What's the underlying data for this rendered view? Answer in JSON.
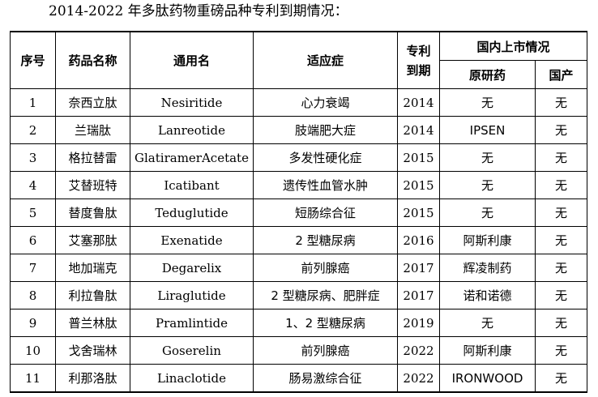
{
  "caption": "2014-2022 年多肽药物重磅品种专利到期情况：",
  "headers": {
    "index": "序号",
    "drug_name": "药品名称",
    "generic_name": "通用名",
    "indication": "适应症",
    "patent_expiry": "专利到期",
    "domestic_market": "国内上市情况",
    "originator": "原研药",
    "domestic": "国产"
  },
  "rows": [
    {
      "index": "1",
      "drug_name": "奈西立肽",
      "generic_name": "Nesiritide",
      "indication": "心力衰竭",
      "year": "2014",
      "originator": "无",
      "domestic": "无"
    },
    {
      "index": "2",
      "drug_name": "兰瑞肽",
      "generic_name": "Lanreotide",
      "indication": "肢端肥大症",
      "year": "2014",
      "originator": "IPSEN",
      "domestic": "无"
    },
    {
      "index": "3",
      "drug_name": "格拉替雷",
      "generic_name": "GlatiramerAcetate",
      "indication": "多发性硬化症",
      "year": "2015",
      "originator": "无",
      "domestic": "无"
    },
    {
      "index": "4",
      "drug_name": "艾替班特",
      "generic_name": "Icatibant",
      "indication": "遗传性血管水肿",
      "year": "2015",
      "originator": "无",
      "domestic": "无"
    },
    {
      "index": "5",
      "drug_name": "替度鲁肽",
      "generic_name": "Teduglutide",
      "indication": "短肠综合征",
      "year": "2015",
      "originator": "无",
      "domestic": "无"
    },
    {
      "index": "6",
      "drug_name": "艾塞那肽",
      "generic_name": "Exenatide",
      "indication": "2 型糖尿病",
      "year": "2016",
      "originator": "阿斯利康",
      "domestic": "无"
    },
    {
      "index": "7",
      "drug_name": "地加瑞克",
      "generic_name": "Degarelix",
      "indication": "前列腺癌",
      "year": "2017",
      "originator": "辉凌制药",
      "domestic": "无"
    },
    {
      "index": "8",
      "drug_name": "利拉鲁肽",
      "generic_name": "Liraglutide",
      "indication": "2 型糖尿病、肥胖症",
      "year": "2017",
      "originator": "诺和诺德",
      "domestic": "无"
    },
    {
      "index": "9",
      "drug_name": "普兰林肽",
      "generic_name": "Pramlintide",
      "indication": "1、2 型糖尿病",
      "year": "2019",
      "originator": "无",
      "domestic": "无"
    },
    {
      "index": "10",
      "drug_name": "戈舍瑞林",
      "generic_name": "Goserelin",
      "indication": "前列腺癌",
      "year": "2022",
      "originator": "阿斯利康",
      "domestic": "无"
    },
    {
      "index": "11",
      "drug_name": "利那洛肽",
      "generic_name": "Linaclotide",
      "indication": "肠易激综合征",
      "year": "2022",
      "originator": "IRONWOOD",
      "domestic": "无"
    }
  ]
}
